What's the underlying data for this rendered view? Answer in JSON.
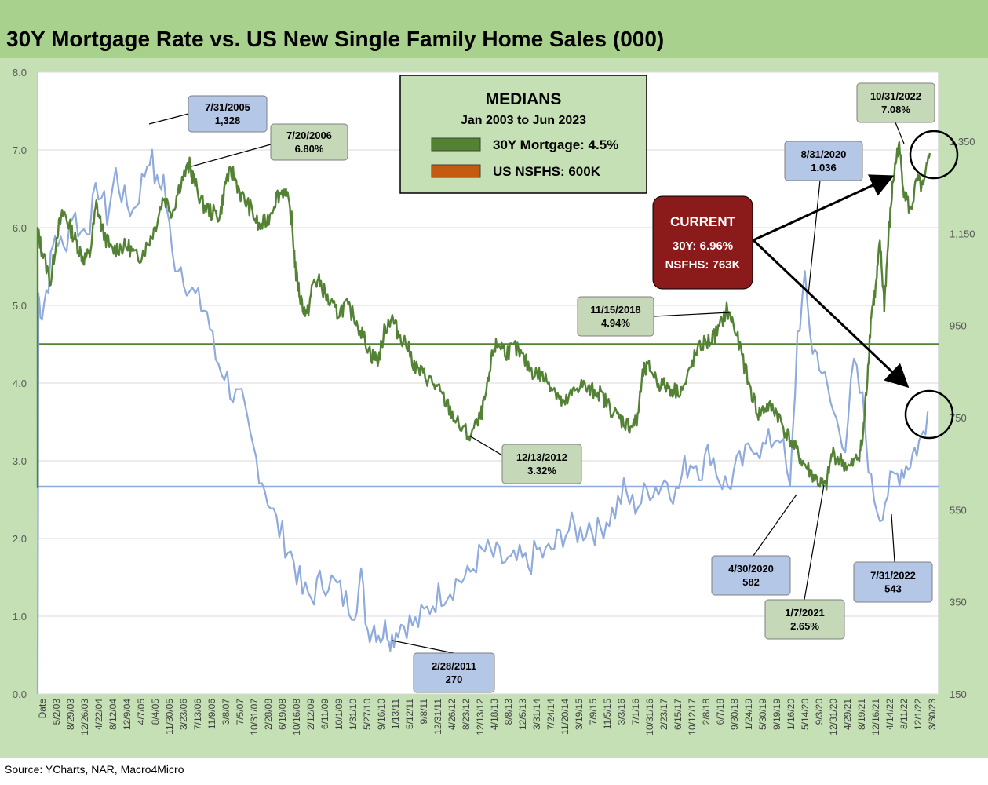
{
  "title": "30Y Mortgage Rate vs. US New Single Family Home Sales (000)",
  "source": "Source: YCharts, NAR, Macro4Micro",
  "colors": {
    "mortgage": "#548235",
    "sales": "#8faadc",
    "mortgage_box": "#c5d9b8",
    "sales_box": "#b4c7e7",
    "current_box": "#8b1a1a",
    "legend_box": "#c5e0b4",
    "background": "#c5e0b4",
    "plot": "#ffffff"
  },
  "legend": {
    "heading": "MEDIANS",
    "subheading": "Jan 2003 to Jun 2023",
    "items": [
      {
        "label": "30Y Mortgage: 4.5%",
        "color": "#548235"
      },
      {
        "label": "US NSFHS: 600K",
        "color": "#c55a11"
      }
    ]
  },
  "current": {
    "heading": "CURRENT",
    "line1": "30Y: 6.96%",
    "line2": "NSFHS: 763K"
  },
  "annotations": [
    {
      "id": "sales-2005",
      "series": "sales",
      "date": "7/31/2005",
      "value": "1,328"
    },
    {
      "id": "mort-2006",
      "series": "mortgage",
      "date": "7/20/2006",
      "value": "6.80%"
    },
    {
      "id": "sales-2011",
      "series": "sales",
      "date": "2/28/2011",
      "value": "270"
    },
    {
      "id": "mort-2012",
      "series": "mortgage",
      "date": "12/13/2012",
      "value": "3.32%"
    },
    {
      "id": "mort-2018",
      "series": "mortgage",
      "date": "11/15/2018",
      "value": "4.94%"
    },
    {
      "id": "sales-2020a",
      "series": "sales",
      "date": "4/30/2020",
      "value": "582"
    },
    {
      "id": "sales-2020b",
      "series": "sales",
      "date": "8/31/2020",
      "value": "1.036"
    },
    {
      "id": "mort-2021",
      "series": "mortgage",
      "date": "1/7/2021",
      "value": "2.65%"
    },
    {
      "id": "sales-2022",
      "series": "sales",
      "date": "7/31/2022",
      "value": "543"
    },
    {
      "id": "mort-2022",
      "series": "mortgage",
      "date": "10/31/2022",
      "value": "7.08%"
    }
  ],
  "chart_data": {
    "type": "line",
    "title": "30Y Mortgage Rate vs. US New Single Family Home Sales (000)",
    "y_left": {
      "min": 0,
      "max": 8,
      "ticks": [
        "0.0",
        "1.0",
        "2.0",
        "3.0",
        "4.0",
        "5.0",
        "6.0",
        "7.0",
        "8.0"
      ]
    },
    "y_right": {
      "min": 150,
      "max": 1500,
      "ticks": [
        "150",
        "350",
        "550",
        "750",
        "950",
        "1,150",
        "1,350"
      ]
    },
    "x_tick_labels": [
      "Date",
      "5/2/03",
      "8/29/03",
      "12/26/03",
      "4/22/04",
      "8/12/04",
      "12/9/04",
      "4/7/05",
      "8/4/05",
      "11/30/05",
      "3/23/06",
      "7/13/06",
      "11/9/06",
      "3/8/07",
      "7/5/07",
      "10/31/07",
      "2/28/08",
      "6/19/08",
      "10/16/08",
      "2/12/09",
      "6/11/09",
      "10/1/09",
      "1/31/10",
      "5/27/10",
      "9/16/10",
      "1/13/11",
      "5/12/11",
      "9/8/11",
      "12/31/11",
      "4/26/12",
      "8/23/12",
      "12/13/12",
      "4/18/13",
      "8/8/13",
      "12/5/13",
      "3/31/14",
      "7/24/14",
      "11/20/14",
      "3/19/15",
      "7/9/15",
      "11/5/15",
      "3/3/16",
      "7/1/16",
      "10/31/16",
      "2/23/17",
      "6/15/17",
      "10/12/17",
      "2/8/18",
      "6/7/18",
      "9/30/18",
      "1/24/19",
      "5/30/19",
      "9/19/19",
      "1/16/20",
      "5/14/20",
      "9/3/20",
      "12/31/20",
      "4/29/21",
      "8/19/21",
      "12/16/21",
      "4/14/22",
      "8/11/22",
      "12/1/22",
      "3/30/23"
    ],
    "medians": {
      "mortgage": 4.5,
      "sales": 600
    },
    "series": [
      {
        "name": "30Y Mortgage",
        "axis": "left",
        "x": [
          2003.0,
          2003.1,
          2003.3,
          2003.45,
          2003.6,
          2003.75,
          2003.9,
          2004.05,
          2004.2,
          2004.35,
          2004.5,
          2004.7,
          2004.9,
          2005.1,
          2005.3,
          2005.5,
          2005.7,
          2005.9,
          2006.1,
          2006.3,
          2006.5,
          2006.6,
          2006.8,
          2007.0,
          2007.2,
          2007.35,
          2007.5,
          2007.7,
          2007.9,
          2008.1,
          2008.3,
          2008.5,
          2008.7,
          2008.85,
          2008.95,
          2009.05,
          2009.2,
          2009.35,
          2009.5,
          2009.7,
          2009.9,
          2010.1,
          2010.3,
          2010.5,
          2010.7,
          2010.85,
          2011.0,
          2011.15,
          2011.3,
          2011.5,
          2011.7,
          2011.9,
          2012.1,
          2012.3,
          2012.5,
          2012.7,
          2012.95,
          2013.2,
          2013.35,
          2013.5,
          2013.65,
          2013.8,
          2014.0,
          2014.2,
          2014.4,
          2014.6,
          2014.8,
          2015.0,
          2015.1,
          2015.3,
          2015.5,
          2015.7,
          2015.9,
          2016.1,
          2016.3,
          2016.5,
          2016.65,
          2016.8,
          2016.95,
          2017.1,
          2017.3,
          2017.5,
          2017.7,
          2017.9,
          2018.1,
          2018.3,
          2018.5,
          2018.7,
          2018.87,
          2019.0,
          2019.2,
          2019.4,
          2019.6,
          2019.8,
          2020.0,
          2020.2,
          2020.4,
          2020.6,
          2020.8,
          2021.0,
          2021.15,
          2021.3,
          2021.5,
          2021.7,
          2021.9,
          2022.0,
          2022.1,
          2022.2,
          2022.3,
          2022.4,
          2022.5,
          2022.6,
          2022.7,
          2022.83,
          2022.95,
          2023.1,
          2023.25,
          2023.4,
          2023.55
        ],
        "values": [
          5.95,
          5.7,
          5.3,
          5.95,
          6.2,
          6.0,
          5.8,
          5.6,
          5.65,
          6.3,
          5.95,
          5.7,
          5.75,
          5.75,
          5.6,
          5.75,
          6.0,
          6.4,
          6.2,
          6.6,
          6.8,
          6.6,
          6.3,
          6.2,
          6.15,
          6.65,
          6.7,
          6.4,
          6.25,
          6.0,
          6.1,
          6.4,
          6.5,
          6.1,
          5.4,
          5.1,
          4.85,
          5.3,
          5.3,
          5.05,
          4.9,
          5.0,
          4.85,
          4.6,
          4.35,
          4.3,
          4.7,
          4.85,
          4.65,
          4.5,
          4.2,
          4.1,
          4.0,
          3.85,
          3.65,
          3.45,
          3.32,
          3.55,
          3.9,
          4.45,
          4.5,
          4.4,
          4.45,
          4.3,
          4.15,
          4.1,
          4.0,
          3.85,
          3.7,
          3.85,
          4.0,
          3.9,
          3.9,
          3.75,
          3.6,
          3.5,
          3.45,
          3.5,
          4.15,
          4.2,
          4.0,
          3.95,
          3.9,
          3.95,
          4.3,
          4.5,
          4.55,
          4.7,
          4.94,
          4.8,
          4.4,
          3.95,
          3.6,
          3.7,
          3.65,
          3.4,
          3.2,
          3.0,
          2.85,
          2.72,
          2.65,
          3.1,
          3.0,
          2.9,
          3.05,
          3.25,
          4.0,
          4.9,
          5.2,
          5.8,
          5.0,
          5.9,
          6.6,
          7.08,
          6.5,
          6.2,
          6.6,
          6.5,
          6.96
        ]
      },
      {
        "name": "US NSFHS",
        "axis": "right",
        "x": [
          2003.0,
          2003.1,
          2003.25,
          2003.4,
          2003.6,
          2003.8,
          2004.0,
          2004.2,
          2004.4,
          2004.6,
          2004.8,
          2005.0,
          2005.2,
          2005.4,
          2005.58,
          2005.75,
          2005.9,
          2006.1,
          2006.3,
          2006.5,
          2006.7,
          2006.9,
          2007.1,
          2007.3,
          2007.5,
          2007.7,
          2007.9,
          2008.1,
          2008.3,
          2008.5,
          2008.7,
          2008.9,
          2009.1,
          2009.3,
          2009.5,
          2009.7,
          2009.9,
          2010.1,
          2010.3,
          2010.45,
          2010.6,
          2010.75,
          2010.9,
          2011.05,
          2011.16,
          2011.3,
          2011.5,
          2011.7,
          2011.9,
          2012.1,
          2012.3,
          2012.5,
          2012.7,
          2012.9,
          2013.1,
          2013.3,
          2013.5,
          2013.7,
          2013.9,
          2014.1,
          2014.3,
          2014.5,
          2014.7,
          2014.9,
          2015.1,
          2015.3,
          2015.5,
          2015.7,
          2015.9,
          2016.1,
          2016.3,
          2016.5,
          2016.7,
          2016.9,
          2017.1,
          2017.3,
          2017.5,
          2017.7,
          2017.9,
          2018.1,
          2018.3,
          2018.5,
          2018.7,
          2018.9,
          2019.1,
          2019.3,
          2019.5,
          2019.7,
          2019.9,
          2020.1,
          2020.33,
          2020.5,
          2020.67,
          2020.85,
          2021.0,
          2021.2,
          2021.4,
          2021.6,
          2021.8,
          2022.0,
          2022.2,
          2022.4,
          2022.58,
          2022.75,
          2022.9,
          2023.05,
          2023.2,
          2023.35,
          2023.5
        ],
        "values": [
          1020,
          980,
          1050,
          1150,
          1110,
          1200,
          1150,
          1180,
          1250,
          1190,
          1280,
          1220,
          1200,
          1260,
          1328,
          1250,
          1270,
          1100,
          1080,
          1030,
          1000,
          980,
          880,
          850,
          800,
          780,
          700,
          640,
          580,
          520,
          480,
          440,
          370,
          360,
          390,
          400,
          380,
          350,
          340,
          400,
          290,
          300,
          280,
          295,
          270,
          300,
          305,
          300,
          320,
          350,
          370,
          380,
          400,
          400,
          440,
          460,
          450,
          440,
          430,
          440,
          430,
          460,
          450,
          470,
          500,
          510,
          500,
          520,
          500,
          530,
          550,
          590,
          560,
          570,
          600,
          600,
          620,
          580,
          640,
          660,
          640,
          680,
          620,
          600,
          640,
          660,
          700,
          680,
          700,
          720,
          582,
          930,
          1036,
          900,
          880,
          800,
          740,
          700,
          860,
          780,
          600,
          543,
          590,
          620,
          640,
          650,
          680,
          700,
          763
        ]
      }
    ]
  }
}
